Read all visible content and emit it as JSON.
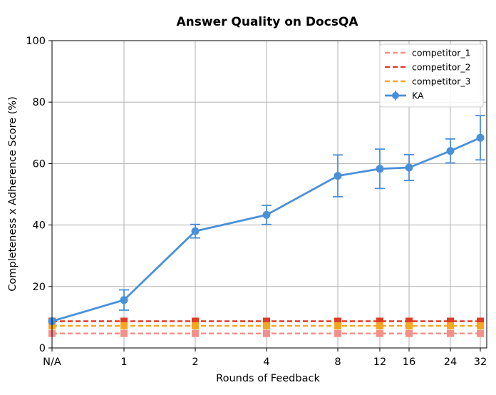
{
  "chart_data": {
    "type": "line",
    "title": "Answer Quality on DocsQA",
    "xlabel": "Rounds of Feedback",
    "ylabel": "Completeness x Adherence Score (%)",
    "categories": [
      "N/A",
      "1",
      "2",
      "4",
      "8",
      "12",
      "16",
      "24",
      "32"
    ],
    "ylim": [
      0,
      100
    ],
    "yticks": [
      0,
      20,
      40,
      60,
      80,
      100
    ],
    "grid": true,
    "legend_position": "top-right",
    "series": [
      {
        "name": "competitor_1",
        "style": "dashed",
        "color": "#f4908a",
        "marker": "square",
        "values": [
          4.7,
          4.7,
          4.7,
          4.7,
          4.7,
          4.7,
          4.7,
          4.7,
          4.7
        ]
      },
      {
        "name": "competitor_2",
        "style": "dashed",
        "color": "#e03b24",
        "marker": "square",
        "values": [
          8.7,
          8.7,
          8.7,
          8.7,
          8.7,
          8.7,
          8.7,
          8.7,
          8.7
        ]
      },
      {
        "name": "competitor_3",
        "style": "dashed",
        "color": "#f5a623",
        "marker": "square",
        "values": [
          7.2,
          7.2,
          7.2,
          7.2,
          7.2,
          7.2,
          7.2,
          7.2,
          7.2
        ]
      },
      {
        "name": "KA",
        "style": "solid",
        "color": "#4a90d9",
        "marker": "circle",
        "values": [
          8.7,
          15.6,
          38.0,
          43.3,
          56.0,
          58.3,
          58.7,
          64.1,
          68.4
        ],
        "errors": [
          0.0,
          3.3,
          2.2,
          3.1,
          6.8,
          6.4,
          4.2,
          3.9,
          7.2
        ]
      }
    ]
  }
}
